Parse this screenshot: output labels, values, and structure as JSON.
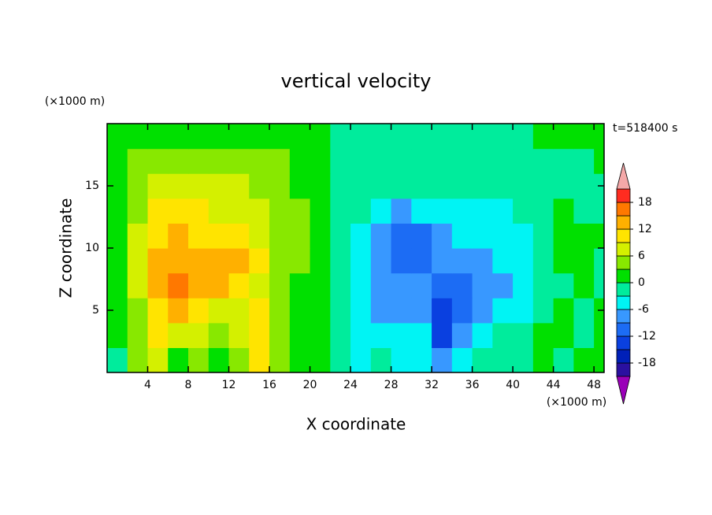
{
  "chart_data": {
    "type": "contour",
    "title": "vertical velocity",
    "x_label": "X coordinate",
    "y_label": "Z coordinate",
    "x_unit": "(×1000 m)",
    "y_unit": "(×1000 m)",
    "annotation": "t=518400 s",
    "xlim": [
      0,
      49
    ],
    "ylim": [
      0,
      20
    ],
    "xticks": [
      4,
      8,
      12,
      16,
      20,
      24,
      28,
      32,
      36,
      40,
      44,
      48
    ],
    "yticks": [
      5,
      10,
      15
    ],
    "x": [
      1,
      3,
      5,
      7,
      9,
      11,
      13,
      15,
      17,
      19,
      21,
      23,
      25,
      27,
      29,
      31,
      33,
      35,
      37,
      39,
      41,
      43,
      45,
      47,
      49
    ],
    "y": [
      1,
      3,
      5,
      7,
      9,
      11,
      13,
      15,
      17,
      19
    ],
    "z": [
      [
        -1,
        4,
        8,
        2,
        5,
        1,
        4,
        9,
        3,
        2,
        1,
        -2,
        -4,
        -3,
        -4,
        -5,
        -8,
        -4,
        -3,
        -2,
        -1,
        0,
        -1,
        1,
        0
      ],
      [
        1,
        5,
        10,
        6,
        8,
        3,
        6,
        11,
        4,
        2,
        1,
        -2,
        -4,
        -5,
        -5,
        -6,
        -14,
        -7,
        -5,
        -3,
        -2,
        0,
        0,
        -1,
        1
      ],
      [
        2,
        5,
        11,
        14,
        10,
        7,
        8,
        9,
        4,
        2,
        1,
        -2,
        -4,
        -7,
        -7,
        -8,
        -14,
        -11,
        -7,
        -6,
        -4,
        -2,
        0,
        -1,
        0
      ],
      [
        2,
        6,
        12,
        15,
        12,
        12,
        11,
        8,
        5,
        2,
        1,
        -2,
        -5,
        -7,
        -9,
        -8,
        -11,
        -10,
        -7,
        -7,
        -5,
        -2,
        -1,
        0,
        -1
      ],
      [
        2,
        7,
        12,
        12,
        14,
        12,
        14,
        9,
        5,
        3,
        1,
        -1,
        -4,
        -7,
        -10,
        -12,
        -9,
        -7,
        -7,
        -6,
        -5,
        -3,
        1,
        0,
        -1
      ],
      [
        2,
        6,
        11,
        13,
        11,
        10,
        9,
        8,
        5,
        3,
        1,
        -1,
        -4,
        -7,
        -12,
        -11,
        -7,
        -6,
        -6,
        -5,
        -4,
        -2,
        2,
        0,
        0
      ],
      [
        2,
        5,
        9,
        10,
        9,
        8,
        7,
        6,
        4,
        3,
        1,
        -1,
        -3,
        -5,
        -7,
        -6,
        -5,
        -4,
        -4,
        -4,
        -3,
        -2,
        0,
        -1,
        -1
      ],
      [
        1,
        4,
        7,
        8,
        8,
        7,
        6,
        5,
        4,
        2,
        0,
        -1,
        -2,
        -3,
        -3,
        -3,
        -3,
        -3,
        -3,
        -3,
        -2,
        -1,
        -1,
        -1,
        -1
      ],
      [
        1,
        3,
        4,
        5,
        5,
        5,
        4,
        4,
        3,
        2,
        0,
        -1,
        -1,
        -2,
        -2,
        -2,
        -2,
        -2,
        -2,
        -2,
        -1,
        -1,
        -1,
        -1,
        0
      ],
      [
        1,
        1,
        2,
        2,
        2,
        2,
        2,
        2,
        1,
        1,
        0,
        -1,
        -1,
        -1,
        -1,
        -1,
        -1,
        -1,
        -1,
        -1,
        -1,
        0,
        0,
        0,
        0
      ]
    ],
    "colorbar": {
      "levels": [
        -21,
        -18,
        -15,
        -12,
        -9,
        -6,
        -3,
        0,
        3,
        6,
        9,
        12,
        15,
        18,
        21
      ],
      "colors": [
        "#2a10a0",
        "#0020b8",
        "#0a40e0",
        "#1c6cf4",
        "#3898ff",
        "#00f4f4",
        "#00ec9c",
        "#00e000",
        "#88e800",
        "#d4f000",
        "#ffe400",
        "#ffb000",
        "#ff7800",
        "#ff2c20"
      ],
      "under_color": "#9a00b8",
      "over_color": "#f4a8a8",
      "ticks": [
        -18,
        -12,
        -6,
        0,
        6,
        12,
        18
      ]
    }
  }
}
